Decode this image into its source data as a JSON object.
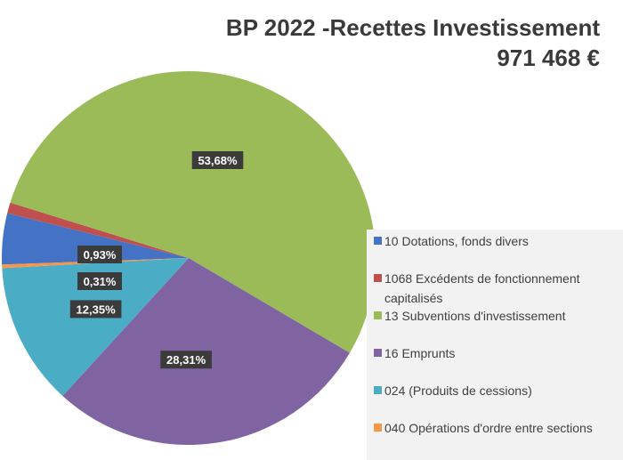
{
  "chart_data": {
    "type": "pie",
    "title": "BP 2022 -Recettes Investissement",
    "subtitle": "971 468 €",
    "legend_position": "right",
    "slices": [
      {
        "name": "10 Dotations, fonds divers",
        "value": 4.42,
        "label": "",
        "color": "#4472c4"
      },
      {
        "name": "1068 Excédents de fonctionnement capitalisés",
        "value": 0.93,
        "label": "0,93%",
        "color": "#c0504d"
      },
      {
        "name": "13 Subventions d'investissement",
        "value": 53.68,
        "label": "53,68%",
        "color": "#9bbb59"
      },
      {
        "name": "16 Emprunts",
        "value": 28.31,
        "label": "28,31%",
        "color": "#8064a2"
      },
      {
        "name": "024 (Produits de cessions)",
        "value": 12.35,
        "label": "12,35%",
        "color": "#4bacc6"
      },
      {
        "name": "040 Opérations d'ordre entre sections",
        "value": 0.31,
        "label": "0,31%",
        "color": "#f79646"
      }
    ]
  }
}
